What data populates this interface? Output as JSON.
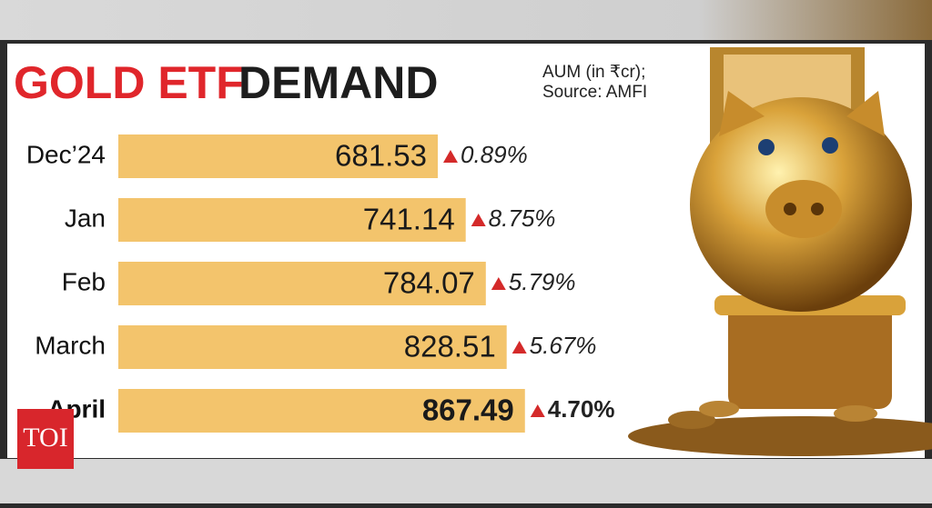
{
  "chart_data": {
    "type": "bar",
    "orientation": "horizontal",
    "title_highlight": "GOLD ETF",
    "title": "DEMAND",
    "subtitle": "AUM (in ₹cr);",
    "source": "Source: AMFI",
    "categories": [
      "Dec’24",
      "Jan",
      "Feb",
      "March",
      "April"
    ],
    "values": [
      681.53,
      741.14,
      784.07,
      828.51,
      867.49
    ],
    "color": "#f3c46c",
    "change_percent": [
      0.89,
      8.75,
      5.79,
      5.67,
      4.7
    ],
    "change_labels": [
      "0.89%",
      "8.75%",
      "5.79%",
      "5.67%",
      "4.70%"
    ],
    "change_color": "#d42a2a",
    "highlight_color": "#e0262b",
    "logo": "TOI"
  }
}
